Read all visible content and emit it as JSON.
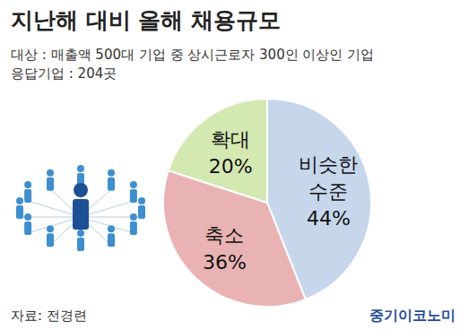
{
  "chart_data": {
    "type": "pie",
    "title": "지난해 대비 올해 채용규모",
    "subtitle": [
      "대상 : 매출액 500대 기업 중 상시근로자 300인 이상인 기업",
      "응답기업 : 204곳"
    ],
    "categories": [
      "비슷한 수준",
      "축소",
      "확대"
    ],
    "values": [
      44,
      36,
      20
    ],
    "value_labels": [
      "44%",
      "36%",
      "20%"
    ],
    "colors": [
      "#c6d6eb",
      "#e9b3b3",
      "#d4e8b2"
    ],
    "data_labels": true,
    "source": "자료: 전경련",
    "annotations": [
      "중기이코노미"
    ]
  }
}
